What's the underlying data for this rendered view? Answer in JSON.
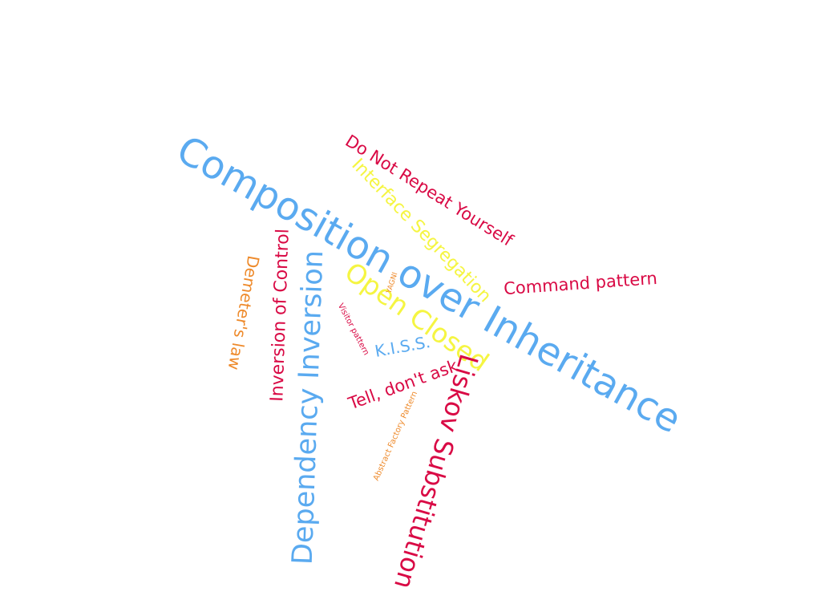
{
  "palette": {
    "blue": "#5aaaf0",
    "red": "#d90a45",
    "yellow": "#f5f542",
    "orange": "#ee8a2b",
    "background": "#ffffff"
  },
  "words": {
    "composition": "Composition over Inheritance",
    "dry": "Do Not Repeat Yourself",
    "isp": "Interface Segregation",
    "command": "Command pattern",
    "open_closed": "Open Closed",
    "yagni": "YAGNI",
    "visitor": "Visitor pattern",
    "kiss": "K.I.S.S.",
    "tell": "Tell, don't ask",
    "abstract_factory": "Abstract Factory Pattern",
    "liskov": "Liskov Substitution",
    "dependency_inversion": "Dependency Inversion",
    "ioc": "Inversion of Control",
    "demeter": "Demeter's law"
  }
}
